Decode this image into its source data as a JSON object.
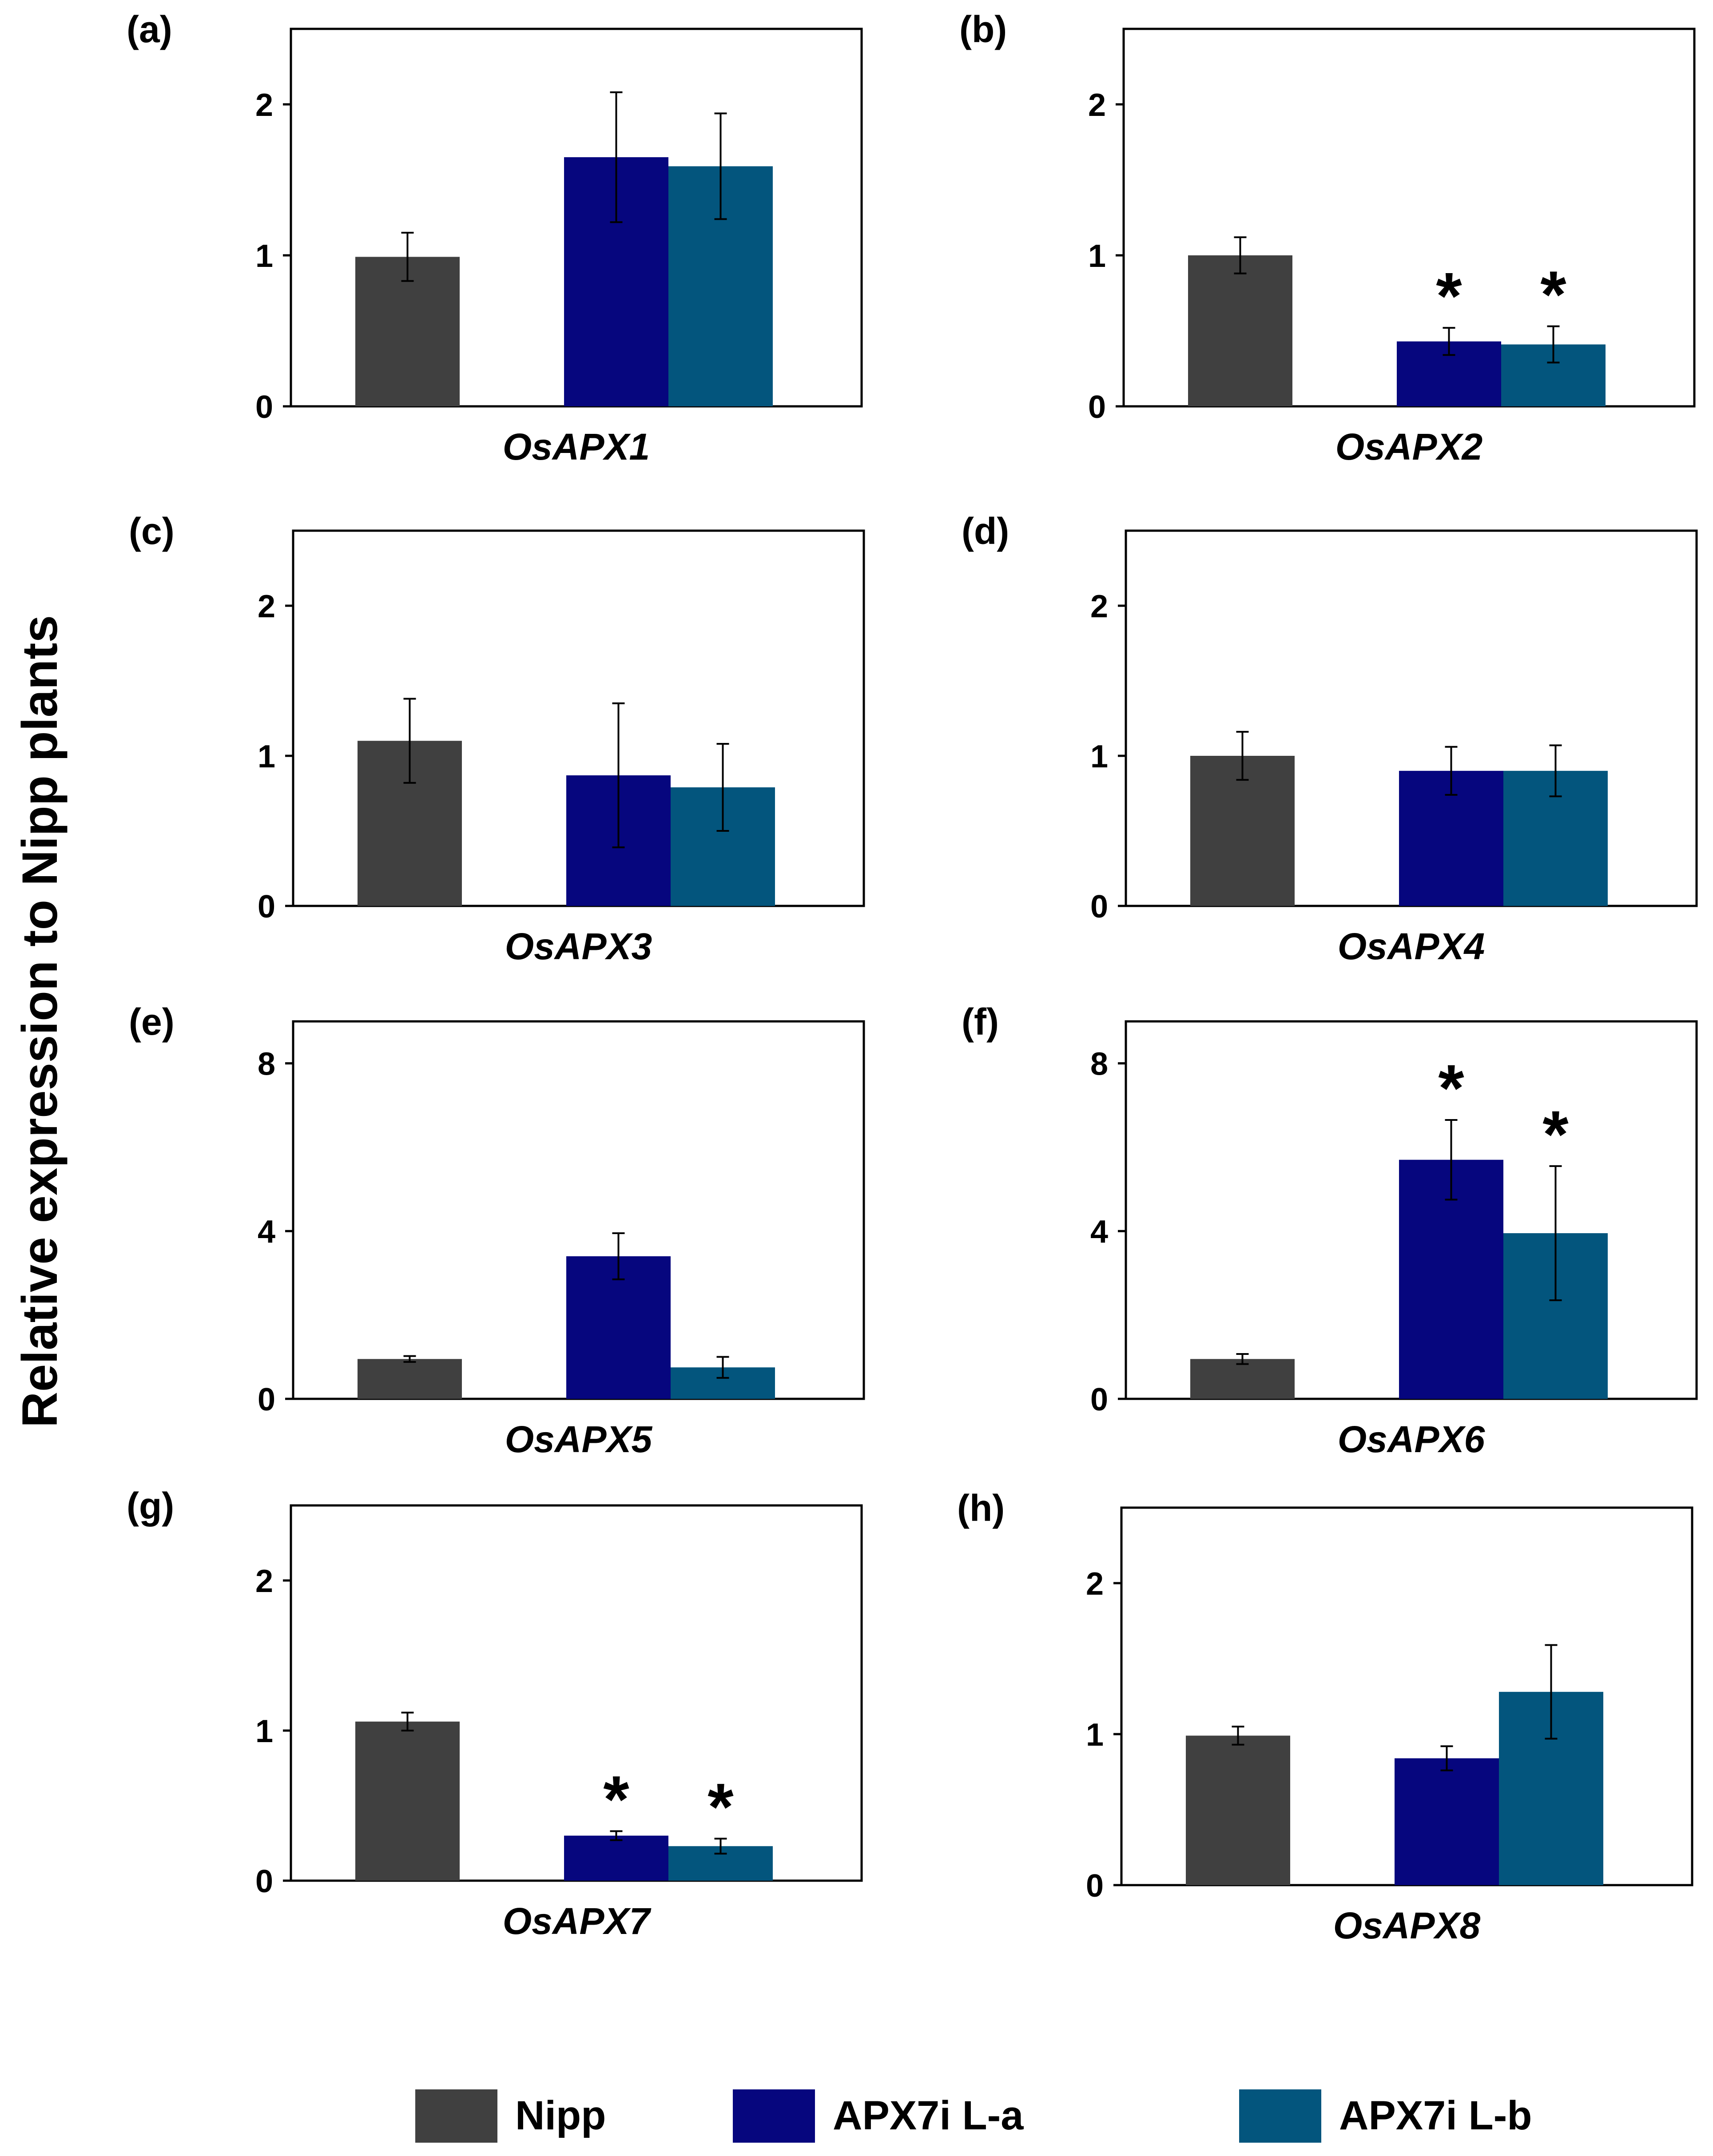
{
  "ylabel": "Relative expression to Nipp plants",
  "colors": {
    "Nipp": "#404040",
    "APX7i L-a": "#06067e",
    "APX7i L-b": "#03557d"
  },
  "legend": [
    {
      "label": "Nipp",
      "color": "#404040"
    },
    {
      "label": "APX7i L-a",
      "color": "#06067e"
    },
    {
      "label": "APX7i L-b",
      "color": "#03557d"
    }
  ],
  "chart_data": [
    {
      "type": "bar",
      "panel": "(a)",
      "gene": "OsAPX1",
      "ylim": [
        0,
        2.5
      ],
      "yticks": [
        0,
        1,
        2
      ],
      "series": [
        {
          "name": "Nipp",
          "value": 0.99,
          "error": 0.16,
          "significant": false
        },
        {
          "name": "APX7i L-a",
          "value": 1.65,
          "error": 0.43,
          "significant": false
        },
        {
          "name": "APX7i L-b",
          "value": 1.59,
          "error": 0.35,
          "significant": false
        }
      ]
    },
    {
      "type": "bar",
      "panel": "(b)",
      "gene": "OsAPX2",
      "ylim": [
        0,
        2.5
      ],
      "yticks": [
        0,
        1,
        2
      ],
      "series": [
        {
          "name": "Nipp",
          "value": 1.0,
          "error": 0.12,
          "significant": false
        },
        {
          "name": "APX7i L-a",
          "value": 0.43,
          "error": 0.09,
          "significant": true
        },
        {
          "name": "APX7i L-b",
          "value": 0.41,
          "error": 0.12,
          "significant": true
        }
      ]
    },
    {
      "type": "bar",
      "panel": "(c)",
      "gene": "OsAPX3",
      "ylim": [
        0,
        2.5
      ],
      "yticks": [
        0,
        1,
        2
      ],
      "series": [
        {
          "name": "Nipp",
          "value": 1.1,
          "error": 0.28,
          "significant": false
        },
        {
          "name": "APX7i L-a",
          "value": 0.87,
          "error": 0.48,
          "significant": false
        },
        {
          "name": "APX7i L-b",
          "value": 0.79,
          "error": 0.29,
          "significant": false
        }
      ]
    },
    {
      "type": "bar",
      "panel": "(d)",
      "gene": "OsAPX4",
      "ylim": [
        0,
        2.5
      ],
      "yticks": [
        0,
        1,
        2
      ],
      "series": [
        {
          "name": "Nipp",
          "value": 1.0,
          "error": 0.16,
          "significant": false
        },
        {
          "name": "APX7i L-a",
          "value": 0.9,
          "error": 0.16,
          "significant": false
        },
        {
          "name": "APX7i L-b",
          "value": 0.9,
          "error": 0.17,
          "significant": false
        }
      ]
    },
    {
      "type": "bar",
      "panel": "(e)",
      "gene": "OsAPX5",
      "ylim": [
        0,
        9
      ],
      "yticks": [
        0,
        4,
        8
      ],
      "series": [
        {
          "name": "Nipp",
          "value": 0.95,
          "error": 0.07,
          "significant": false
        },
        {
          "name": "APX7i L-a",
          "value": 3.4,
          "error": 0.55,
          "significant": false
        },
        {
          "name": "APX7i L-b",
          "value": 0.75,
          "error": 0.25,
          "significant": false
        }
      ]
    },
    {
      "type": "bar",
      "panel": "(f)",
      "gene": "OsAPX6",
      "ylim": [
        0,
        9
      ],
      "yticks": [
        0,
        4,
        8
      ],
      "series": [
        {
          "name": "Nipp",
          "value": 0.95,
          "error": 0.12,
          "significant": false
        },
        {
          "name": "APX7i L-a",
          "value": 5.7,
          "error": 0.95,
          "significant": true
        },
        {
          "name": "APX7i L-b",
          "value": 3.95,
          "error": 1.6,
          "significant": true
        }
      ]
    },
    {
      "type": "bar",
      "panel": "(g)",
      "gene": "OsAPX7",
      "ylim": [
        0,
        2.5
      ],
      "yticks": [
        0,
        1,
        2
      ],
      "series": [
        {
          "name": "Nipp",
          "value": 1.06,
          "error": 0.06,
          "significant": false
        },
        {
          "name": "APX7i L-a",
          "value": 0.3,
          "error": 0.03,
          "significant": true
        },
        {
          "name": "APX7i L-b",
          "value": 0.23,
          "error": 0.05,
          "significant": true
        }
      ]
    },
    {
      "type": "bar",
      "panel": "(h)",
      "gene": "OsAPX8",
      "ylim": [
        0,
        2.5
      ],
      "yticks": [
        0,
        1,
        2
      ],
      "series": [
        {
          "name": "Nipp",
          "value": 0.99,
          "error": 0.06,
          "significant": false
        },
        {
          "name": "APX7i L-a",
          "value": 0.84,
          "error": 0.08,
          "significant": false
        },
        {
          "name": "APX7i L-b",
          "value": 1.28,
          "error": 0.31,
          "significant": false
        }
      ]
    }
  ]
}
